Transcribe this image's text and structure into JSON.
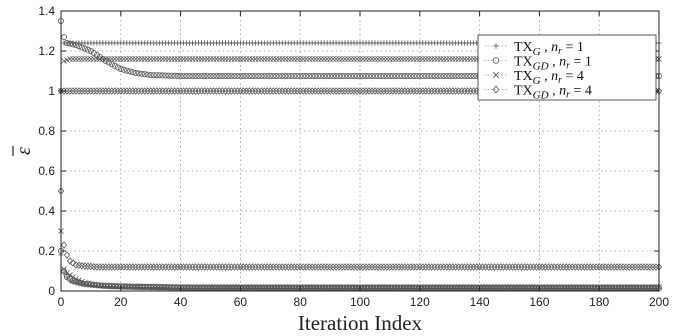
{
  "chart_data": {
    "type": "line",
    "xlabel": "Iteration Index",
    "ylabel": "ε̄",
    "ylabel_base": "ε",
    "xlim": [
      0,
      200
    ],
    "ylim": [
      0,
      1.4
    ],
    "xticks": [
      "0",
      "20",
      "40",
      "60",
      "80",
      "100",
      "120",
      "140",
      "160",
      "180",
      "200"
    ],
    "yticks": [
      "0",
      "0.2",
      "0.4",
      "0.6",
      "0.8",
      "1",
      "1.2",
      "1.4"
    ],
    "grid": true,
    "legend_position": "top-right",
    "series": [
      {
        "name": "TX_G , n_r = 1",
        "legend": {
          "base": "TX",
          "sub": "G",
          "rest": " , n",
          "rsub": "r",
          "tail": " = 1"
        },
        "marker": "plus",
        "points": [
          [
            0,
            1.0
          ],
          [
            0.5,
            1.23
          ],
          [
            1,
            1.24
          ],
          [
            5,
            1.24
          ],
          [
            50,
            1.24
          ],
          [
            100,
            1.24
          ],
          [
            150,
            1.24
          ],
          [
            200,
            1.24
          ]
        ]
      },
      {
        "name": "TX_GD , n_r = 1",
        "legend": {
          "base": "TX",
          "sub": "GD",
          "rest": " , n",
          "rsub": "r",
          "tail": " = 1"
        },
        "marker": "circle",
        "points": [
          [
            0,
            1.35
          ],
          [
            1,
            1.27
          ],
          [
            2,
            1.24
          ],
          [
            5,
            1.23
          ],
          [
            10,
            1.2
          ],
          [
            15,
            1.15
          ],
          [
            20,
            1.11
          ],
          [
            25,
            1.09
          ],
          [
            30,
            1.08
          ],
          [
            40,
            1.075
          ],
          [
            60,
            1.075
          ],
          [
            100,
            1.075
          ],
          [
            150,
            1.075
          ],
          [
            200,
            1.075
          ]
        ]
      },
      {
        "name": "TX_G , n_r = 4",
        "legend": {
          "base": "TX",
          "sub": "G",
          "rest": " , n",
          "rsub": "r",
          "tail": " = 4"
        },
        "marker": "x",
        "points": [
          [
            0,
            1.0
          ],
          [
            0.5,
            1.12
          ],
          [
            1,
            1.15
          ],
          [
            3,
            1.16
          ],
          [
            10,
            1.16
          ],
          [
            50,
            1.16
          ],
          [
            100,
            1.16
          ],
          [
            150,
            1.16
          ],
          [
            200,
            1.16
          ]
        ]
      },
      {
        "name": "TX_GD , n_r = 4",
        "legend": {
          "base": "TX",
          "sub": "GD",
          "rest": " , n",
          "rsub": "r",
          "tail": " = 4"
        },
        "marker": "diamond",
        "points": [
          [
            0,
            1.0
          ],
          [
            1,
            1.0
          ],
          [
            200,
            1.0
          ]
        ]
      },
      {
        "name": "",
        "marker": "diamond",
        "points": [
          [
            0,
            0.5
          ],
          [
            0.5,
            0.33
          ],
          [
            1,
            0.23
          ],
          [
            2,
            0.18
          ],
          [
            3,
            0.15
          ],
          [
            5,
            0.13
          ],
          [
            8,
            0.125
          ],
          [
            12,
            0.12
          ],
          [
            20,
            0.12
          ],
          [
            60,
            0.12
          ],
          [
            100,
            0.12
          ],
          [
            150,
            0.12
          ],
          [
            200,
            0.12
          ]
        ]
      },
      {
        "name": "",
        "marker": "x",
        "points": [
          [
            0,
            0.3
          ],
          [
            0.5,
            0.16
          ],
          [
            1,
            0.11
          ],
          [
            2,
            0.09
          ],
          [
            3,
            0.08
          ],
          [
            5,
            0.06
          ],
          [
            8,
            0.04
          ],
          [
            12,
            0.03
          ],
          [
            20,
            0.025
          ],
          [
            40,
            0.02
          ],
          [
            80,
            0.02
          ],
          [
            120,
            0.02
          ],
          [
            160,
            0.02
          ],
          [
            200,
            0.02
          ]
        ]
      },
      {
        "name": "",
        "marker": "circle",
        "points": [
          [
            0,
            0.2
          ],
          [
            1,
            0.1
          ],
          [
            2,
            0.07
          ],
          [
            4,
            0.05
          ],
          [
            8,
            0.035
          ],
          [
            15,
            0.025
          ],
          [
            25,
            0.02
          ],
          [
            50,
            0.015
          ],
          [
            100,
            0.015
          ],
          [
            150,
            0.015
          ],
          [
            200,
            0.015
          ]
        ]
      },
      {
        "name": "",
        "marker": "plus",
        "points": [
          [
            0,
            0.18
          ],
          [
            1,
            0.09
          ],
          [
            3,
            0.05
          ],
          [
            6,
            0.035
          ],
          [
            12,
            0.025
          ],
          [
            20,
            0.02
          ],
          [
            40,
            0.015
          ],
          [
            80,
            0.015
          ],
          [
            120,
            0.015
          ],
          [
            160,
            0.015
          ],
          [
            200,
            0.015
          ]
        ]
      }
    ]
  }
}
